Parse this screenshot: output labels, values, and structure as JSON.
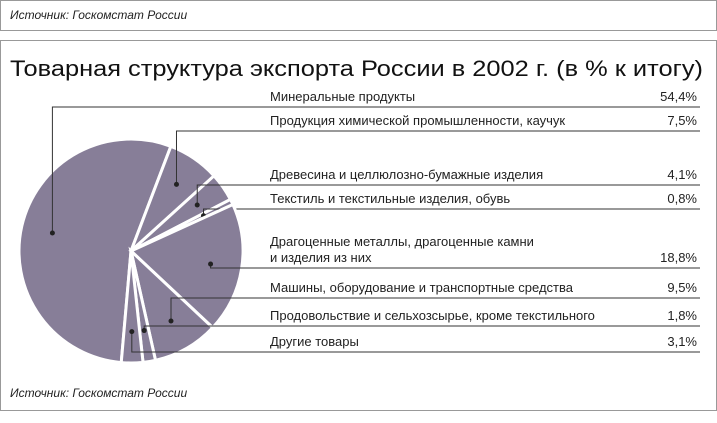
{
  "chart_data": {
    "type": "pie",
    "title": "Товарная структура экспорта России в 2002 г. (в % к итогу)",
    "source": "Источник: Госкомстат России",
    "categories": [
      "Минеральные продукты",
      "Продукция химической промышленности, каучук",
      "Древесина и целлюлозно-бумажные изделия",
      "Текстиль и текстильные изделия, обувь",
      "Драгоценные металлы, драгоценные камни и изделия из них",
      "Машины, оборудование и транспортные средства",
      "Продовольствие и сельхозсырье, кроме текстильного",
      "Другие товары"
    ],
    "values": [
      54.4,
      7.5,
      4.1,
      0.8,
      18.8,
      9.5,
      1.8,
      3.1
    ],
    "value_labels": [
      "54,4%",
      "7,5%",
      "4,1%",
      "0,8%",
      "18,8%",
      "9,5%",
      "1,8%",
      "3,1%"
    ],
    "color": "#877e98"
  }
}
